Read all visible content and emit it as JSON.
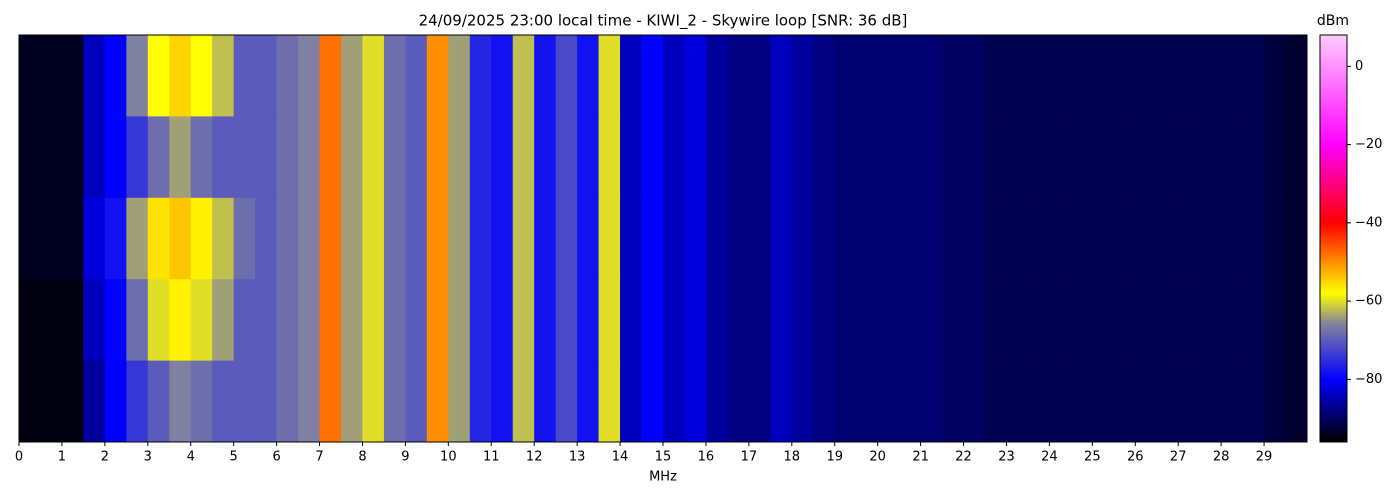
{
  "chart_data": {
    "type": "heatmap",
    "title": "24/09/2025 23:00 local time - KIWI_2 - Skywire loop [SNR: 36 dB]",
    "xlabel": "MHz",
    "colorbar_label": "dBm",
    "xlim": [
      0,
      30
    ],
    "xticks": [
      0,
      1,
      2,
      3,
      4,
      5,
      6,
      7,
      8,
      9,
      10,
      11,
      12,
      13,
      14,
      15,
      16,
      17,
      18,
      19,
      20,
      21,
      22,
      23,
      24,
      25,
      26,
      27,
      28,
      29
    ],
    "clim": [
      -96,
      8
    ],
    "cticks": [
      {
        "value": 0,
        "label": "0"
      },
      {
        "value": -20,
        "label": "−20"
      },
      {
        "value": -40,
        "label": "−40"
      },
      {
        "value": -60,
        "label": "−60"
      },
      {
        "value": -80,
        "label": "−80"
      }
    ],
    "colorscale": [
      {
        "value": -96,
        "color": "#000000"
      },
      {
        "value": -80,
        "color": "#0000ff"
      },
      {
        "value": -66,
        "color": "#8080a0"
      },
      {
        "value": -58,
        "color": "#ffff00"
      },
      {
        "value": -40,
        "color": "#ff0000"
      },
      {
        "value": -20,
        "color": "#ff00ff"
      },
      {
        "value": 8,
        "color": "#ffccff"
      }
    ],
    "z": [
      [
        -94,
        -94,
        -94,
        -84,
        -80,
        -66,
        -58,
        -55,
        -58,
        -62,
        -70,
        -70,
        -68,
        -66,
        -48,
        -64,
        -60,
        -68,
        -70,
        -50,
        -64,
        -76,
        -78,
        -62,
        -78,
        -72,
        -78,
        -60,
        -84,
        -80,
        -84,
        -82,
        -86,
        -88,
        -88,
        -84,
        -86,
        -88,
        -89,
        -89,
        -89,
        -89,
        -89,
        -90,
        -90,
        -91,
        -91,
        -91,
        -91,
        -91,
        -91,
        -91,
        -91,
        -91,
        -91,
        -91,
        -91,
        -91,
        -92,
        -93
      ],
      [
        -94,
        -94,
        -94,
        -84,
        -80,
        -74,
        -68,
        -64,
        -68,
        -70,
        -70,
        -70,
        -68,
        -66,
        -48,
        -64,
        -60,
        -68,
        -70,
        -50,
        -64,
        -76,
        -78,
        -62,
        -78,
        -72,
        -78,
        -60,
        -84,
        -80,
        -84,
        -82,
        -86,
        -88,
        -88,
        -84,
        -86,
        -88,
        -89,
        -89,
        -89,
        -89,
        -89,
        -90,
        -90,
        -91,
        -91,
        -91,
        -91,
        -91,
        -91,
        -91,
        -91,
        -91,
        -91,
        -91,
        -91,
        -91,
        -92,
        -93
      ],
      [
        -94,
        -94,
        -94,
        -82,
        -78,
        -64,
        -56,
        -54,
        -57,
        -62,
        -68,
        -70,
        -68,
        -66,
        -48,
        -64,
        -60,
        -68,
        -70,
        -50,
        -64,
        -76,
        -78,
        -62,
        -78,
        -72,
        -78,
        -60,
        -84,
        -80,
        -84,
        -82,
        -86,
        -88,
        -88,
        -84,
        -86,
        -88,
        -89,
        -89,
        -89,
        -89,
        -89,
        -90,
        -90,
        -91,
        -91,
        -91,
        -91,
        -91,
        -91,
        -91,
        -91,
        -91,
        -91,
        -91,
        -91,
        -91,
        -92,
        -93
      ],
      [
        -95,
        -95,
        -95,
        -84,
        -80,
        -68,
        -60,
        -57,
        -60,
        -64,
        -70,
        -70,
        -68,
        -66,
        -48,
        -64,
        -60,
        -68,
        -70,
        -50,
        -64,
        -76,
        -78,
        -62,
        -78,
        -72,
        -78,
        -60,
        -84,
        -80,
        -84,
        -82,
        -86,
        -88,
        -88,
        -84,
        -86,
        -88,
        -89,
        -89,
        -89,
        -89,
        -89,
        -90,
        -90,
        -91,
        -91,
        -91,
        -91,
        -91,
        -91,
        -91,
        -91,
        -91,
        -91,
        -91,
        -91,
        -91,
        -92,
        -93
      ],
      [
        -95,
        -95,
        -95,
        -86,
        -80,
        -74,
        -70,
        -66,
        -68,
        -70,
        -70,
        -70,
        -68,
        -66,
        -48,
        -64,
        -60,
        -68,
        -70,
        -50,
        -64,
        -76,
        -78,
        -62,
        -78,
        -72,
        -78,
        -60,
        -84,
        -80,
        -84,
        -82,
        -86,
        -88,
        -88,
        -84,
        -86,
        -88,
        -89,
        -89,
        -89,
        -89,
        -89,
        -90,
        -90,
        -91,
        -91,
        -91,
        -91,
        -91,
        -91,
        -91,
        -91,
        -91,
        -91,
        -91,
        -91,
        -91,
        -92,
        -93
      ]
    ]
  }
}
